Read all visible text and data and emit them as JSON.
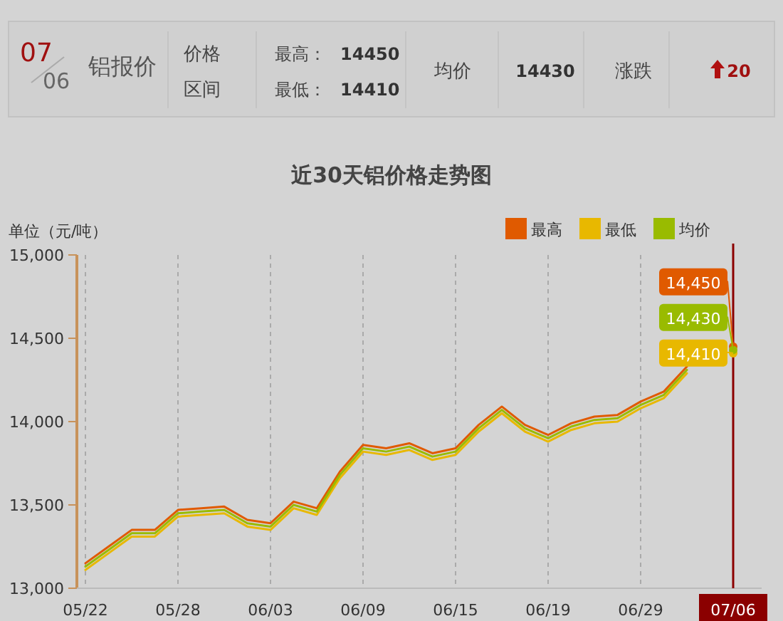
{
  "chart_data": {
    "type": "line",
    "title": "近30天铝价格走势图",
    "ylabel": "单位（元/吨）",
    "categories": [
      "05/22",
      null,
      null,
      null,
      "05/28",
      null,
      null,
      null,
      "06/03",
      null,
      null,
      null,
      "06/09",
      null,
      null,
      null,
      "06/15",
      null,
      null,
      null,
      "06/19",
      null,
      null,
      null,
      "06/29",
      null,
      null,
      null,
      "07/06"
    ],
    "series": [
      {
        "name": "最高",
        "color": "#e05a00",
        "values": [
          13150,
          13250,
          13350,
          13350,
          13470,
          13480,
          13490,
          13410,
          13390,
          13520,
          13480,
          13700,
          13860,
          13840,
          13870,
          13810,
          13840,
          13980,
          14090,
          13980,
          13920,
          13990,
          14030,
          14040,
          14120,
          14180,
          14330,
          null,
          14450
        ],
        "value_labels": [
          null,
          null,
          null,
          null,
          null,
          null,
          null,
          null,
          null,
          null,
          null,
          null,
          null,
          null,
          null,
          null,
          null,
          null,
          null,
          null,
          null,
          null,
          null,
          null,
          null,
          null,
          null,
          null,
          "14,450"
        ]
      },
      {
        "name": "最低",
        "color": "#e8b800",
        "values": [
          13110,
          13210,
          13310,
          13310,
          13430,
          13440,
          13450,
          13370,
          13350,
          13480,
          13440,
          13660,
          13820,
          13800,
          13830,
          13770,
          13800,
          13940,
          14050,
          13940,
          13880,
          13950,
          13990,
          14000,
          14080,
          14140,
          14290,
          null,
          14410
        ],
        "value_labels": [
          null,
          null,
          null,
          null,
          null,
          null,
          null,
          null,
          null,
          null,
          null,
          null,
          null,
          null,
          null,
          null,
          null,
          null,
          null,
          null,
          null,
          null,
          null,
          null,
          null,
          null,
          null,
          null,
          "14,410"
        ]
      },
      {
        "name": "均价",
        "color": "#99bb00",
        "values": [
          13130,
          13230,
          13330,
          13330,
          13450,
          13460,
          13470,
          13390,
          13370,
          13500,
          13460,
          13680,
          13840,
          13820,
          13850,
          13790,
          13820,
          13960,
          14070,
          13960,
          13900,
          13970,
          14010,
          14020,
          14100,
          14160,
          14310,
          null,
          14430
        ],
        "value_labels": [
          null,
          null,
          null,
          null,
          null,
          null,
          null,
          null,
          null,
          null,
          null,
          null,
          null,
          null,
          null,
          null,
          null,
          null,
          null,
          null,
          null,
          null,
          null,
          null,
          null,
          null,
          null,
          null,
          "14,430"
        ]
      }
    ],
    "ylim": [
      13000,
      15000
    ],
    "yticks": [
      {
        "value": 13000,
        "label": "13,000"
      },
      {
        "value": 13500,
        "label": "13,500"
      },
      {
        "value": 14000,
        "label": "14,000"
      },
      {
        "value": 14500,
        "label": "14,500"
      },
      {
        "value": 15000,
        "label": "15,000"
      }
    ],
    "grid": "x",
    "legend": "top right",
    "ref_lines": [
      {
        "axis": "x",
        "value": "07/06",
        "color": "#8b0000"
      }
    ],
    "annotations": [
      "07",
      "06",
      "铝报价",
      "价格",
      "区间",
      "最高：",
      "14450",
      "最低：",
      "14410",
      "均价",
      "14430",
      "涨跌",
      "20"
    ]
  }
}
